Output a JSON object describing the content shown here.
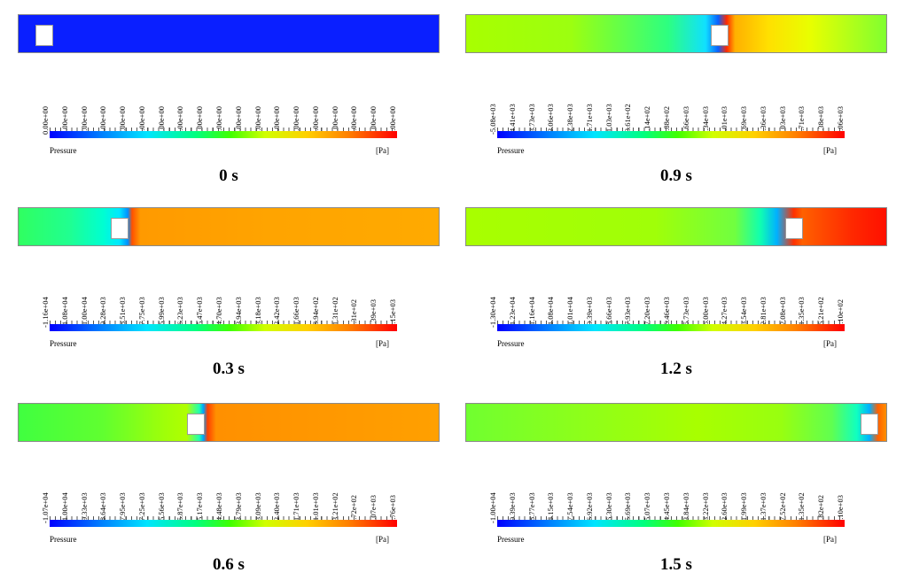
{
  "panels": [
    {
      "id": "p0",
      "time": "0 s",
      "ticks": [
        "0.00e+00",
        "0.00e+00",
        "0.00e+00",
        "0.00e+00",
        "0.00e+00",
        "0.00e+00",
        "0.00e+00",
        "0.00e+00",
        "0.00e+00",
        "0.00e+00",
        "0.00e+00",
        "0.00e+00",
        "0.00e+00",
        "0.00e+00",
        "0.00e+00",
        "0.00e+00",
        "0.00e+00",
        "0.00e+00",
        "0.00e+00"
      ],
      "quantity": "Pressure",
      "unit": "[Pa]"
    },
    {
      "id": "p1",
      "time": "0.9 s",
      "ticks": [
        "-5.08e+03",
        "-4.41e+03",
        "-3.73e+03",
        "-3.06e+03",
        "-2.38e+03",
        "-1.71e+03",
        "-1.03e+03",
        "-3.61e+02",
        "3.14e+02",
        "9.88e+02",
        "1.66e+03",
        "2.34e+03",
        "3.01e+03",
        "3.69e+03",
        "4.36e+03",
        "5.03e+03",
        "5.71e+03",
        "6.38e+03",
        "7.06e+03"
      ],
      "quantity": "Pressure",
      "unit": "[Pa]"
    },
    {
      "id": "p2",
      "time": "0.3 s",
      "ticks": [
        "-1.16e+04",
        "-1.08e+04",
        "-1.00e+04",
        "-9.28e+03",
        "-8.51e+03",
        "-7.75e+03",
        "-6.99e+03",
        "-6.23e+03",
        "-5.47e+03",
        "-4.70e+03",
        "-3.94e+03",
        "-3.18e+03",
        "-2.42e+03",
        "-1.66e+03",
        "-8.94e+02",
        "-1.31e+02",
        "6.31e+02",
        "1.39e+03",
        "2.15e+03"
      ],
      "quantity": "Pressure",
      "unit": "[Pa]"
    },
    {
      "id": "p3",
      "time": "1.2 s",
      "ticks": [
        "-1.30e+04",
        "-1.23e+04",
        "-1.16e+04",
        "-1.08e+04",
        "-1.01e+04",
        "-9.39e+03",
        "-8.66e+03",
        "-7.93e+03",
        "-7.20e+03",
        "-6.46e+03",
        "-5.73e+03",
        "-5.00e+03",
        "-4.27e+03",
        "-3.54e+03",
        "-2.81e+03",
        "-2.08e+03",
        "-1.35e+03",
        "-6.21e+02",
        "1.10e+02"
      ],
      "quantity": "Pressure",
      "unit": "[Pa]"
    },
    {
      "id": "p4",
      "time": "0.6 s",
      "ticks": [
        "-1.07e+04",
        "-1.00e+04",
        "-9.33e+03",
        "-8.64e+03",
        "-7.95e+03",
        "-7.25e+03",
        "-6.56e+03",
        "-5.87e+03",
        "-5.17e+03",
        "-4.48e+03",
        "-3.79e+03",
        "-3.09e+03",
        "-2.40e+03",
        "-1.71e+03",
        "-1.01e+03",
        "-3.21e+02",
        "3.72e+02",
        "1.07e+03",
        "1.76e+03"
      ],
      "quantity": "Pressure",
      "unit": "[Pa]"
    },
    {
      "id": "p5",
      "time": "1.5 s",
      "ticks": [
        "-1.00e+04",
        "-9.39e+03",
        "-8.77e+03",
        "-8.15e+03",
        "-7.54e+03",
        "-6.92e+03",
        "-6.30e+03",
        "-5.69e+03",
        "-5.07e+03",
        "-4.45e+03",
        "-3.84e+03",
        "-3.22e+03",
        "-2.60e+03",
        "-1.99e+03",
        "-1.37e+03",
        "-7.52e+02",
        "-1.35e+02",
        "4.82e+02",
        "1.10e+03"
      ],
      "quantity": "Pressure",
      "unit": "[Pa]"
    }
  ],
  "colormap": [
    "#0000ff",
    "#0080ff",
    "#00e5ff",
    "#00ff80",
    "#40ff00",
    "#d0ff00",
    "#ffd000",
    "#ff8000",
    "#ff0000"
  ]
}
